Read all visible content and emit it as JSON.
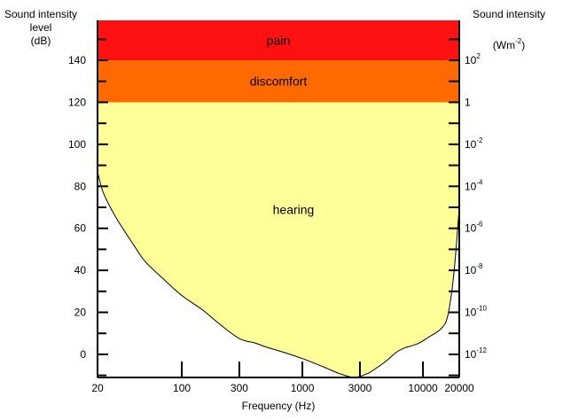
{
  "chart_data": {
    "type": "area",
    "left_axis": {
      "title_lines": [
        "Sound intensity",
        "level",
        "(dB)"
      ],
      "ticks": [
        {
          "value": 0,
          "label": "0"
        },
        {
          "value": 20,
          "label": "20"
        },
        {
          "value": 40,
          "label": "40"
        },
        {
          "value": 60,
          "label": "60"
        },
        {
          "value": 80,
          "label": "80"
        },
        {
          "value": 100,
          "label": "100"
        },
        {
          "value": 120,
          "label": "120"
        },
        {
          "value": 140,
          "label": "140"
        }
      ],
      "range": [
        -11,
        159
      ]
    },
    "right_axis": {
      "title_line1": "Sound intensity",
      "title_unit": {
        "base": "(Wm",
        "sup": "-2",
        "tail": ")"
      },
      "ticks": [
        {
          "db": 0,
          "base": "10",
          "sup": "-12"
        },
        {
          "db": 20,
          "base": "10",
          "sup": "-10"
        },
        {
          "db": 40,
          "base": "10",
          "sup": "-8"
        },
        {
          "db": 60,
          "base": "10",
          "sup": "-6"
        },
        {
          "db": 80,
          "base": "10",
          "sup": "-4"
        },
        {
          "db": 100,
          "base": "10",
          "sup": "-2"
        },
        {
          "db": 120,
          "base": "1",
          "sup": ""
        },
        {
          "db": 140,
          "base": "10",
          "sup": "2"
        }
      ]
    },
    "x_axis": {
      "title": "Frequency (Hz)",
      "scale": "log",
      "range": [
        20,
        20000
      ],
      "ticks": [
        {
          "value": 20,
          "label": "20"
        },
        {
          "value": 100,
          "label": "100"
        },
        {
          "value": 300,
          "label": "300"
        },
        {
          "value": 1000,
          "label": "1000"
        },
        {
          "value": 3000,
          "label": "3000"
        },
        {
          "value": 10000,
          "label": "10000"
        },
        {
          "value": 20000,
          "label": "20000"
        }
      ]
    },
    "regions": [
      {
        "label": "pain",
        "from_db": 140,
        "to_db": 159,
        "color": "#ff1111"
      },
      {
        "label": "discomfort",
        "from_db": 120,
        "to_db": 140,
        "color": "#ff6a00"
      },
      {
        "label": "hearing",
        "below_db": 120,
        "above": "threshold",
        "color": "#ffff99"
      }
    ],
    "threshold_curve": {
      "x": [
        20,
        22,
        25,
        30,
        40,
        50,
        70,
        100,
        150,
        200,
        300,
        400,
        500,
        700,
        1000,
        1500,
        2000,
        2700,
        3500,
        4000,
        5000,
        6000,
        7000,
        9000,
        11000,
        14000,
        16000,
        18000,
        20000
      ],
      "y": [
        87,
        78,
        71,
        63,
        52,
        44,
        36,
        28,
        21,
        15,
        7.5,
        5.5,
        3.5,
        1,
        -2,
        -6,
        -9,
        -11,
        -9,
        -7,
        -3,
        1,
        3,
        5,
        8,
        12,
        18,
        38,
        70
      ]
    }
  }
}
